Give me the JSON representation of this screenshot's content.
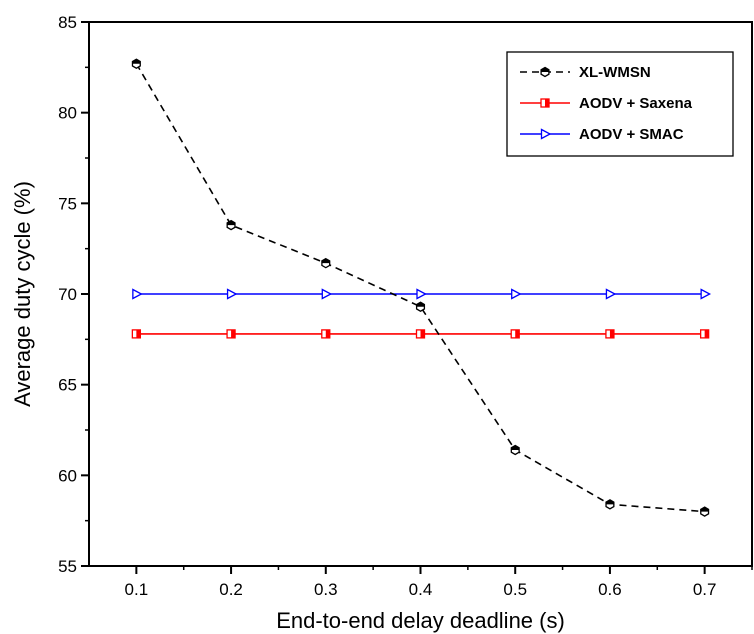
{
  "chart_data": {
    "type": "line",
    "title": "",
    "xlabel": "End-to-end delay deadline (s)",
    "ylabel": "Average duty cycle (%)",
    "x": [
      0.1,
      0.2,
      0.3,
      0.4,
      0.5,
      0.6,
      0.7
    ],
    "x_ticks": [
      "0.1",
      "0.2",
      "0.3",
      "0.4",
      "0.5",
      "0.6",
      "0.7"
    ],
    "xlim": [
      0.05,
      0.75
    ],
    "y_ticks": [
      "55",
      "60",
      "65",
      "70",
      "75",
      "80",
      "85"
    ],
    "ylim": [
      55,
      85
    ],
    "grid": false,
    "legend_position": "top-right",
    "series": [
      {
        "name": "XL-WMSN",
        "values": [
          82.7,
          73.8,
          71.7,
          69.3,
          61.4,
          58.4,
          58.0
        ],
        "color": "#000000",
        "line_style": "dashed",
        "marker": "hexagon"
      },
      {
        "name": "AODV + Saxena",
        "values": [
          67.8,
          67.8,
          67.8,
          67.8,
          67.8,
          67.8,
          67.8
        ],
        "color": "#ff0000",
        "line_style": "solid",
        "marker": "half-filled-square"
      },
      {
        "name": "AODV + SMAC",
        "values": [
          70.0,
          70.0,
          70.0,
          70.0,
          70.0,
          70.0,
          70.0
        ],
        "color": "#0000ff",
        "line_style": "solid",
        "marker": "right-triangle"
      }
    ]
  }
}
